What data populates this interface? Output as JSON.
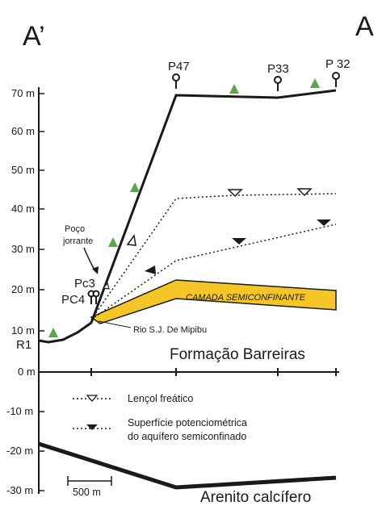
{
  "section": {
    "left_label": "A’",
    "right_label": "A"
  },
  "y_axis": {
    "ticks": [
      "70 m",
      "60 m",
      "50 m",
      "40 m",
      "30 m",
      "20 m",
      "10 m",
      "0 m",
      "-10 m",
      "-20 m",
      "-30 m"
    ]
  },
  "wells": {
    "p47": "P47",
    "p33": "P33",
    "p32": "P 32",
    "pc3": "Pc3",
    "pc4": "PC4",
    "r1": "R1"
  },
  "annotations": {
    "artesian_well": [
      "Poço",
      "jorrante"
    ],
    "river": "Rio S.J. De Mipibu",
    "confining_layer": "CAMADA SEMICONFINANTE",
    "barreiras": "Formação Barreiras",
    "calcareous": "Arenito calcífero",
    "scale_bar": "500 m"
  },
  "legend": {
    "water_table": "Lençol freático",
    "piezometric_line1": "Superfície potenciométrica",
    "piezometric_line2": "do aquífero semiconfinado"
  },
  "colors": {
    "ink": "#1a1a1a",
    "confining_fill": "#f6c628",
    "tree": "#5aa64a"
  }
}
